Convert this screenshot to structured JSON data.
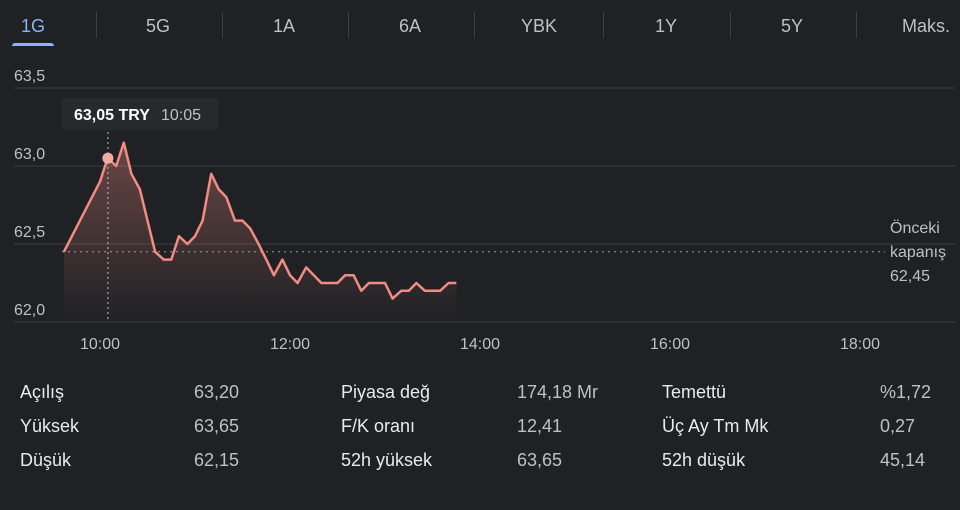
{
  "tabs": [
    {
      "label": "1G",
      "active": true
    },
    {
      "label": "5G",
      "active": false
    },
    {
      "label": "1A",
      "active": false
    },
    {
      "label": "6A",
      "active": false
    },
    {
      "label": "YBK",
      "active": false
    },
    {
      "label": "1Y",
      "active": false
    },
    {
      "label": "5Y",
      "active": false
    },
    {
      "label": "Maks.",
      "active": false
    }
  ],
  "tooltip": {
    "price": "63,05 TRY",
    "time": "10:05"
  },
  "previous_close": {
    "label_line1": "Önceki",
    "label_line2": "kapanış",
    "value": "62,45"
  },
  "chart_data": {
    "type": "line",
    "x_unit": "time of day (hours)",
    "xlim": [
      9.6,
      19.0
    ],
    "ylim": [
      62.0,
      63.5
    ],
    "y_ticks": [
      {
        "value": 63.5,
        "label": "63,5"
      },
      {
        "value": 63.0,
        "label": "63,0"
      },
      {
        "value": 62.5,
        "label": "62,5"
      },
      {
        "value": 62.0,
        "label": "62,0"
      }
    ],
    "x_ticks": [
      {
        "value": 10,
        "label": "10:00"
      },
      {
        "value": 12,
        "label": "12:00"
      },
      {
        "value": 14,
        "label": "14:00"
      },
      {
        "value": 16,
        "label": "16:00"
      },
      {
        "value": 18,
        "label": "18:00"
      }
    ],
    "previous_close": 62.45,
    "highlight": {
      "x": 10.083,
      "y": 63.05
    },
    "series": [
      {
        "x": [
          9.62,
          10.0,
          10.08,
          10.17,
          10.25,
          10.33,
          10.42,
          10.58,
          10.67,
          10.75,
          10.83,
          10.92,
          11.0,
          11.08,
          11.17,
          11.25,
          11.33,
          11.42,
          11.5,
          11.58,
          11.67,
          11.75,
          11.83,
          11.92,
          12.0,
          12.08,
          12.17,
          12.25,
          12.33,
          12.42,
          12.5,
          12.58,
          12.67,
          12.75,
          12.83,
          12.92,
          13.0,
          13.08,
          13.17,
          13.25,
          13.33,
          13.42,
          13.5,
          13.58,
          13.67,
          13.75
        ],
        "y": [
          62.45,
          62.9,
          63.05,
          63.0,
          63.15,
          62.95,
          62.85,
          62.45,
          62.4,
          62.4,
          62.55,
          62.5,
          62.55,
          62.65,
          62.95,
          62.85,
          62.8,
          62.65,
          62.65,
          62.6,
          62.5,
          62.4,
          62.3,
          62.4,
          62.3,
          62.25,
          62.35,
          62.3,
          62.25,
          62.25,
          62.25,
          62.3,
          62.3,
          62.2,
          62.25,
          62.25,
          62.25,
          62.15,
          62.2,
          62.2,
          62.25,
          62.2,
          62.2,
          62.2,
          62.25,
          62.25
        ],
        "color": "#f28b82"
      }
    ],
    "grid": true
  },
  "stats": [
    [
      {
        "label": "Açılış",
        "value": "63,20"
      },
      {
        "label": "Piyasa değ",
        "value": "174,18 Mr"
      },
      {
        "label": "Temettü",
        "value": "%1,72"
      }
    ],
    [
      {
        "label": "Yüksek",
        "value": "63,65"
      },
      {
        "label": "F/K oranı",
        "value": "12,41"
      },
      {
        "label": "Üç Ay Tm Mk",
        "value": "0,27"
      }
    ],
    [
      {
        "label": "Düşük",
        "value": "62,15"
      },
      {
        "label": "52h yüksek",
        "value": "63,65"
      },
      {
        "label": "52h düşük",
        "value": "45,14"
      }
    ]
  ]
}
